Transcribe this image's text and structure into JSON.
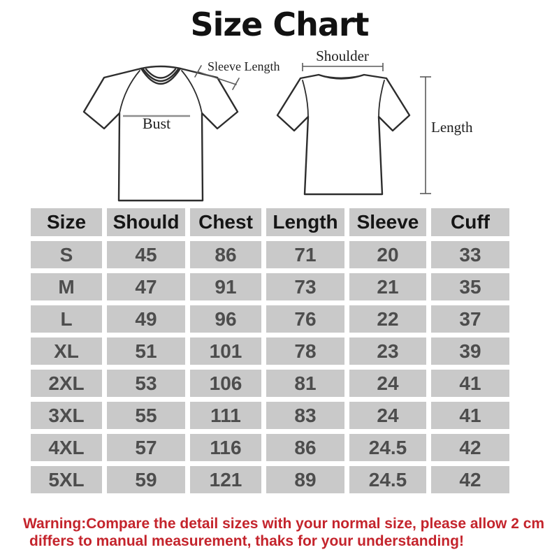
{
  "title": "Size Chart",
  "diagram": {
    "front_label_sleeve_length": "Sleeve Length",
    "front_label_bust": "Bust",
    "back_label_shoulder": "Shoulder",
    "back_label_length": "Length"
  },
  "chart_data": {
    "type": "table",
    "title": "Size Chart",
    "columns": [
      "Size",
      "Should",
      "Chest",
      "Length",
      "Sleeve",
      "Cuff"
    ],
    "rows": [
      [
        "S",
        "45",
        "86",
        "71",
        "20",
        "33"
      ],
      [
        "M",
        "47",
        "91",
        "73",
        "21",
        "35"
      ],
      [
        "L",
        "49",
        "96",
        "76",
        "22",
        "37"
      ],
      [
        "XL",
        "51",
        "101",
        "78",
        "23",
        "39"
      ],
      [
        "2XL",
        "53",
        "106",
        "81",
        "24",
        "41"
      ],
      [
        "3XL",
        "55",
        "111",
        "83",
        "24",
        "41"
      ],
      [
        "4XL",
        "57",
        "116",
        "86",
        "24.5",
        "42"
      ],
      [
        "5XL",
        "59",
        "121",
        "89",
        "24.5",
        "42"
      ]
    ]
  },
  "warning": {
    "line1": "Warning:Compare the detail sizes with your normal size, please allow 2 cm",
    "line2": "differs to manual measurement, thaks for your understanding!"
  },
  "colors": {
    "cell_gray": "#c9c9c9",
    "header_text": "#151515",
    "data_text": "#4d4d4d",
    "warning_red": "#c4242c",
    "shirt_outline": "#2d2d2d",
    "dimension_line": "#5a5a5a",
    "bust_line": "#8d8d8d"
  }
}
